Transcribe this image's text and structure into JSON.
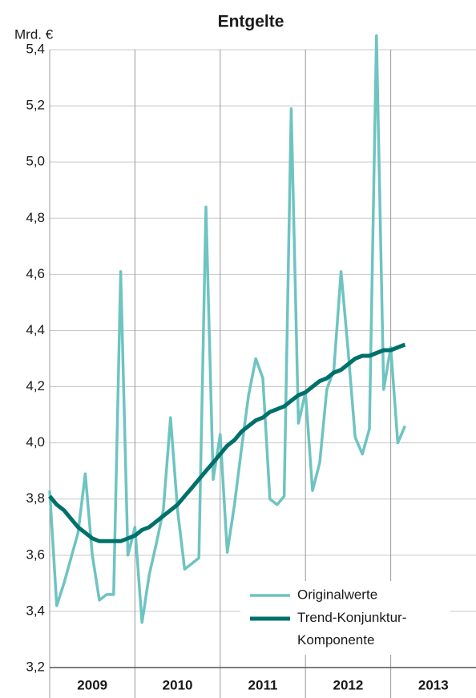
{
  "chart_data": {
    "type": "line",
    "title": "Entgelte",
    "y_label": "Mrd. €",
    "x": [
      2009,
      2009.083,
      2009.167,
      2009.25,
      2009.333,
      2009.417,
      2009.5,
      2009.583,
      2009.667,
      2009.75,
      2009.833,
      2009.917,
      2010,
      2010.083,
      2010.167,
      2010.25,
      2010.333,
      2010.417,
      2010.5,
      2010.583,
      2010.667,
      2010.75,
      2010.833,
      2010.917,
      2011,
      2011.083,
      2011.167,
      2011.25,
      2011.333,
      2011.417,
      2011.5,
      2011.583,
      2011.667,
      2011.75,
      2011.833,
      2011.917,
      2012,
      2012.083,
      2012.167,
      2012.25,
      2012.333,
      2012.417,
      2012.5,
      2012.583,
      2012.667,
      2012.75,
      2012.833,
      2012.917,
      2013,
      2013.083,
      2013.167
    ],
    "series": [
      {
        "name": "Originalwerte",
        "color": "#6ec4c1",
        "width": 3.5,
        "values": [
          3.83,
          3.42,
          3.5,
          3.59,
          3.68,
          3.89,
          3.6,
          3.44,
          3.46,
          3.46,
          4.61,
          3.6,
          3.7,
          3.36,
          3.53,
          3.64,
          3.76,
          4.09,
          3.76,
          3.55,
          3.57,
          3.59,
          4.84,
          3.87,
          4.03,
          3.61,
          3.78,
          3.98,
          4.17,
          4.3,
          4.23,
          3.8,
          3.78,
          3.81,
          5.19,
          4.07,
          4.18,
          3.83,
          3.93,
          4.19,
          4.26,
          4.61,
          4.33,
          4.02,
          3.96,
          4.05,
          5.45,
          4.19,
          4.34,
          4.0,
          4.06
        ]
      },
      {
        "name": "Trend-Konjunktur-Komponente",
        "color": "#00706b",
        "width": 5,
        "values": [
          3.81,
          3.78,
          3.76,
          3.73,
          3.7,
          3.68,
          3.66,
          3.65,
          3.65,
          3.65,
          3.65,
          3.66,
          3.67,
          3.69,
          3.7,
          3.72,
          3.74,
          3.76,
          3.78,
          3.81,
          3.84,
          3.87,
          3.9,
          3.93,
          3.96,
          3.99,
          4.01,
          4.04,
          4.06,
          4.08,
          4.09,
          4.11,
          4.12,
          4.13,
          4.15,
          4.17,
          4.18,
          4.2,
          4.22,
          4.23,
          4.25,
          4.26,
          4.28,
          4.3,
          4.31,
          4.31,
          4.32,
          4.33,
          4.33,
          4.34,
          4.35
        ]
      }
    ],
    "xlim": [
      2009,
      2014
    ],
    "xticks": [
      2009,
      2010,
      2011,
      2012,
      2013
    ],
    "ylim": [
      3.2,
      5.4
    ],
    "yticks": [
      {
        "value": 3.2,
        "label": "3,2"
      },
      {
        "value": 3.4,
        "label": "3,4"
      },
      {
        "value": 3.6,
        "label": "3,6"
      },
      {
        "value": 3.8,
        "label": "3,8"
      },
      {
        "value": 4.0,
        "label": "4,0"
      },
      {
        "value": 4.2,
        "label": "4,2"
      },
      {
        "value": 4.4,
        "label": "4,4"
      },
      {
        "value": 4.6,
        "label": "4,6"
      },
      {
        "value": 4.8,
        "label": "4,8"
      },
      {
        "value": 5.0,
        "label": "5,0"
      },
      {
        "value": 5.2,
        "label": "5,2"
      },
      {
        "value": 5.4,
        "label": "5,4"
      }
    ],
    "grid": true,
    "legend": "lower right"
  }
}
